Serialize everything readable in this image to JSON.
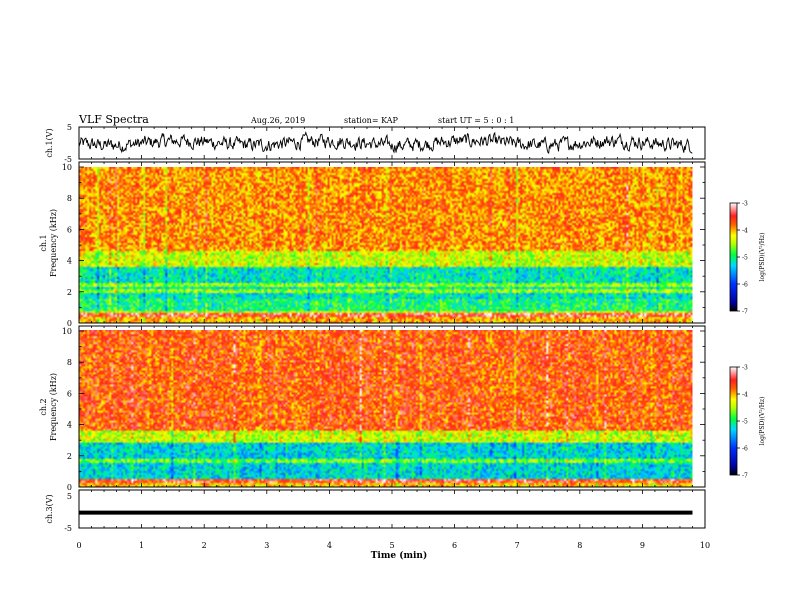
{
  "header": {
    "title": "VLF Spectra",
    "date": "Aug.26, 2019",
    "station": "station= KAP",
    "start": "start  UT =   5  : 0  : 1"
  },
  "chart_data": [
    {
      "type": "line",
      "panel": "ch1-waveform",
      "ylabel": "ch.1(V)",
      "ylim": [
        -5,
        5
      ],
      "yticks": [
        "5",
        "-5"
      ],
      "color": "#000000",
      "y_range": [
        -3.5,
        3.5
      ]
    },
    {
      "type": "heatmap",
      "panel": "ch1-spectrogram",
      "ylabel_top": "ch.1",
      "ylabel": "Frequency (kHz)",
      "ylim": [
        0,
        10
      ],
      "yticks": [
        "0",
        "2",
        "4",
        "6",
        "8",
        "10"
      ],
      "colorbar": {
        "label": "log(PSD)(V²/Hz)",
        "min": -7,
        "max": -3,
        "ticks": [
          "-3",
          "-4",
          "-5",
          "-6",
          "-7"
        ]
      },
      "bands": [
        {
          "from": 0,
          "to": 0.6,
          "level": -4.0
        },
        {
          "from": 0.6,
          "to": 1.5,
          "level": -5.0
        },
        {
          "from": 1.5,
          "to": 3.6,
          "level": -5.2
        },
        {
          "from": 3.6,
          "to": 4.6,
          "level": -4.4
        },
        {
          "from": 4.6,
          "to": 10,
          "level": -3.9
        }
      ],
      "lines_khz": [
        2.0,
        2.4,
        0.4,
        0.55
      ]
    },
    {
      "type": "heatmap",
      "panel": "ch2-spectrogram",
      "ylabel_top": "ch.2",
      "ylabel": "Frequency (kHz)",
      "ylim": [
        0,
        10
      ],
      "yticks": [
        "0",
        "2",
        "4",
        "6",
        "8",
        "10"
      ],
      "colorbar": {
        "label": "log(PSD)(V²/Hz)",
        "min": -7,
        "max": -3,
        "ticks": [
          "-3",
          "-4",
          "-5",
          "-6",
          "-7"
        ]
      },
      "bands": [
        {
          "from": 0,
          "to": 0.5,
          "level": -4.1
        },
        {
          "from": 0.5,
          "to": 2.8,
          "level": -5.3
        },
        {
          "from": 2.8,
          "to": 3.6,
          "level": -4.4
        },
        {
          "from": 3.6,
          "to": 10,
          "level": -3.7
        }
      ],
      "lines_khz": [
        1.6,
        0.35
      ]
    },
    {
      "type": "line",
      "panel": "ch3-waveform",
      "ylabel": "ch.3(V)",
      "ylim": [
        -5,
        5
      ],
      "yticks": [
        "5",
        "-5"
      ],
      "color": "#000000",
      "y_value": -1.0
    }
  ],
  "xaxis": {
    "label": "Time (min)",
    "xlim": [
      0,
      10
    ],
    "ticks": [
      "0",
      "1",
      "2",
      "3",
      "4",
      "5",
      "6",
      "7",
      "8",
      "9",
      "10"
    ],
    "data_end": 9.8
  }
}
